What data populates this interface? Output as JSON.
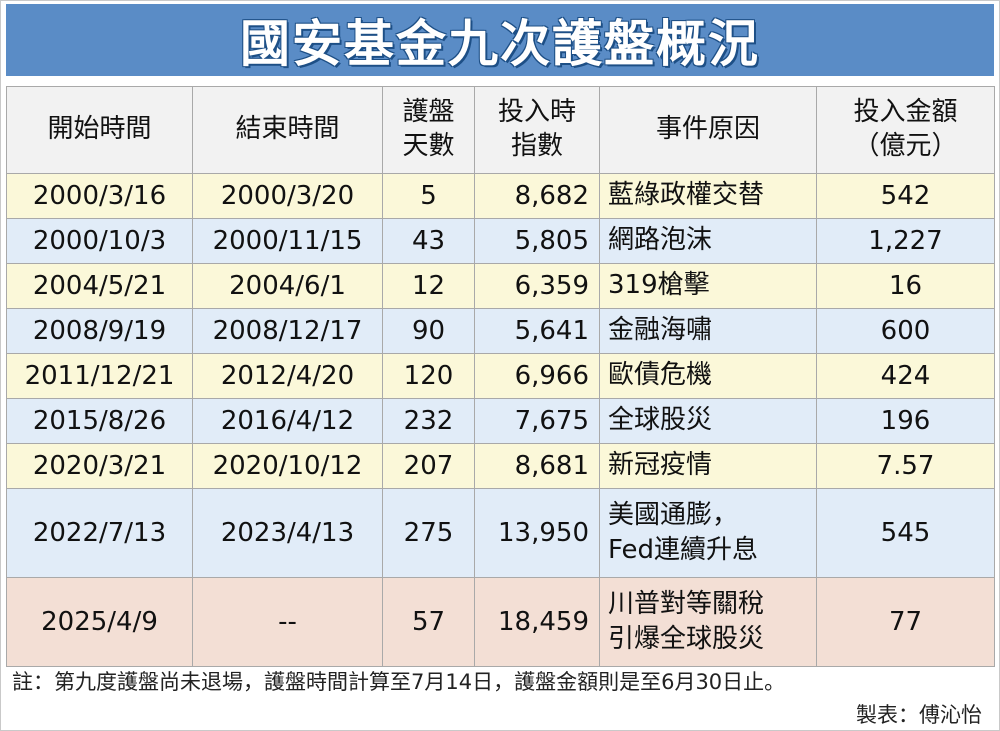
{
  "title": "國安基金九次護盤概況",
  "table": {
    "headers": {
      "start": "開始時間",
      "end": "結束時間",
      "days_l1": "護盤",
      "days_l2": "天數",
      "index_l1": "投入時",
      "index_l2": "指數",
      "reason": "事件原因",
      "amount_l1": "投入金額",
      "amount_l2": "（億元）"
    },
    "rows": [
      {
        "start": "2000/3/16",
        "end": "2000/3/20",
        "days": "5",
        "index": "8,682",
        "reason_l1": "藍綠政權交替",
        "reason_l2": "",
        "amount": "542"
      },
      {
        "start": "2000/10/3",
        "end": "2000/11/15",
        "days": "43",
        "index": "5,805",
        "reason_l1": "網路泡沫",
        "reason_l2": "",
        "amount": "1,227"
      },
      {
        "start": "2004/5/21",
        "end": "2004/6/1",
        "days": "12",
        "index": "6,359",
        "reason_l1": "319槍擊",
        "reason_l2": "",
        "amount": "16"
      },
      {
        "start": "2008/9/19",
        "end": "2008/12/17",
        "days": "90",
        "index": "5,641",
        "reason_l1": "金融海嘯",
        "reason_l2": "",
        "amount": "600"
      },
      {
        "start": "2011/12/21",
        "end": "2012/4/20",
        "days": "120",
        "index": "6,966",
        "reason_l1": "歐債危機",
        "reason_l2": "",
        "amount": "424"
      },
      {
        "start": "2015/8/26",
        "end": "2016/4/12",
        "days": "232",
        "index": "7,675",
        "reason_l1": "全球股災",
        "reason_l2": "",
        "amount": "196"
      },
      {
        "start": "2020/3/21",
        "end": "2020/10/12",
        "days": "207",
        "index": "8,681",
        "reason_l1": "新冠疫情",
        "reason_l2": "",
        "amount": "7.57"
      },
      {
        "start": "2022/7/13",
        "end": "2023/4/13",
        "days": "275",
        "index": "13,950",
        "reason_l1": "美國通膨，",
        "reason_l2": "Fed連續升息",
        "amount": "545"
      },
      {
        "start": "2025/4/9",
        "end": "--",
        "days": "57",
        "index": "18,459",
        "reason_l1": "川普對等關稅",
        "reason_l2": "引爆全球股災",
        "amount": "77"
      }
    ]
  },
  "note": "註：第九度護盤尚未退場，護盤時間計算至7月14日，護盤金額則是至6月30日止。",
  "credit": "製表：傅沁怡",
  "colors": {
    "title_bg": "#5a8cc6",
    "row_yellow": "#fbf8d9",
    "row_blue": "#e1ecf8",
    "row_pink": "#f3dfd5"
  }
}
